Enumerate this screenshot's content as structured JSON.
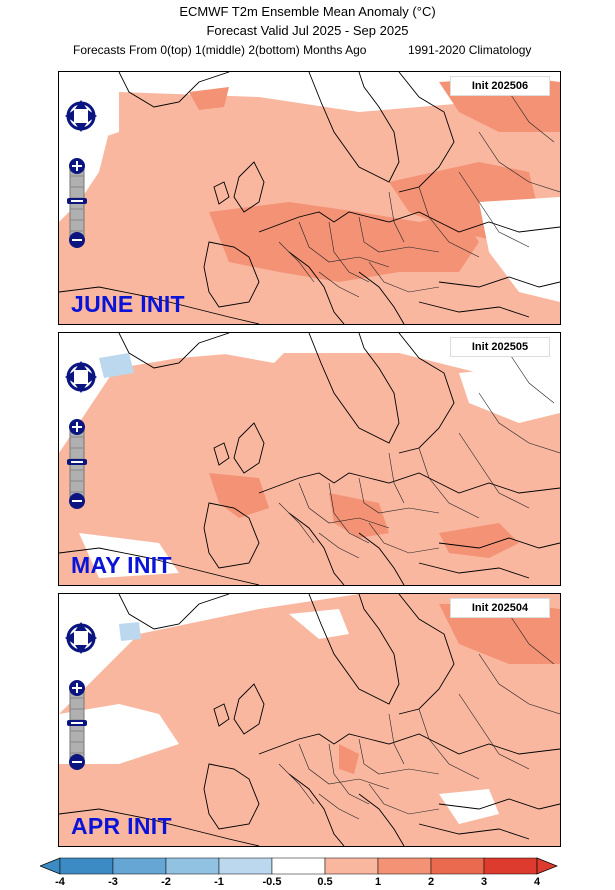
{
  "header": {
    "title": "ECMWF T2m Ensemble Mean Anomaly (°C)",
    "subtitle": "Forecast Valid Jul 2025 - Sep 2025",
    "note_left": "Forecasts From 0(top) 1(middle) 2(bottom) Months Ago",
    "note_right": "1991-2020 Climatology"
  },
  "panels": [
    {
      "init_code": "Init 202506",
      "label": "JUNE INIT"
    },
    {
      "init_code": "Init 202505",
      "label": "MAY INIT"
    },
    {
      "init_code": "Init 202504",
      "label": "APR INIT"
    }
  ],
  "colorbar": {
    "labels": [
      "-4",
      "-3",
      "-2",
      "-1",
      "-0.5",
      "0.5",
      "1",
      "2",
      "3",
      "4"
    ],
    "colors": [
      "#3d8bc4",
      "#65a6d4",
      "#92c2e2",
      "#bcd8ee",
      "#ffffff",
      "#f9b7a0",
      "#f39275",
      "#ea6a4f",
      "#dd3b2e"
    ]
  },
  "controls": {
    "pan_icon": "pan-arrows-icon",
    "zoom_in_icon": "zoom-in-icon",
    "zoom_out_icon": "zoom-out-icon"
  }
}
